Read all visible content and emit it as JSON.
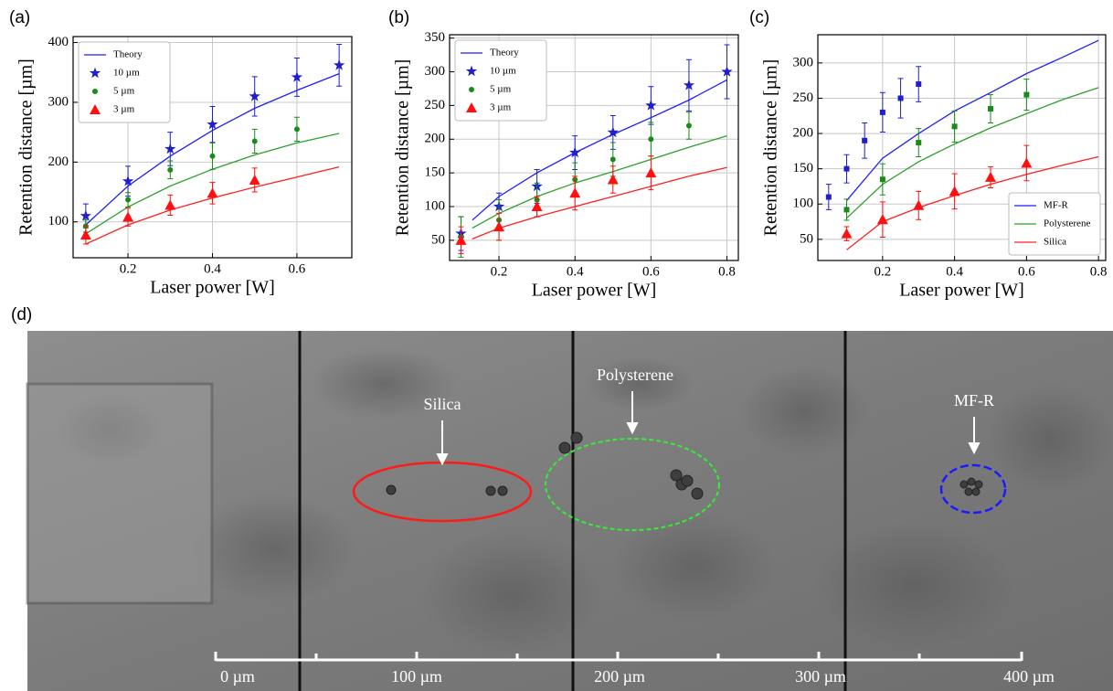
{
  "chart_data": [
    {
      "type": "scatter",
      "label": "(a)",
      "x_label": "Laser power [W]",
      "y_label": "Retention distance [µm]",
      "xlim": [
        0.07,
        0.73
      ],
      "xticks": [
        0.2,
        0.4,
        0.6
      ],
      "ylim": [
        40,
        410
      ],
      "yticks": [
        100,
        200,
        300,
        400
      ],
      "grid": true,
      "legend": "upper left",
      "series": [
        {
          "name": "Theory",
          "color": "#1f1fff",
          "line": true,
          "x": [
            0.1,
            0.2,
            0.3,
            0.4,
            0.5,
            0.6,
            0.7
          ],
          "values": [
            95,
            160,
            210,
            253,
            290,
            320,
            348
          ]
        },
        {
          "color": "#2ca02c",
          "line": true,
          "x": [
            0.1,
            0.2,
            0.3,
            0.4,
            0.5,
            0.6,
            0.7
          ],
          "values": [
            80,
            125,
            160,
            188,
            212,
            232,
            248
          ]
        },
        {
          "color": "#ff2020",
          "line": true,
          "x": [
            0.1,
            0.2,
            0.3,
            0.4,
            0.5,
            0.6,
            0.7
          ],
          "values": [
            63,
            95,
            120,
            140,
            158,
            175,
            192
          ]
        },
        {
          "name": "10 µm",
          "color": "#1f1fcc",
          "marker": "star",
          "x": [
            0.1,
            0.2,
            0.3,
            0.4,
            0.5,
            0.6,
            0.7
          ],
          "values": [
            110,
            168,
            222,
            263,
            310,
            342,
            362
          ],
          "errors": [
            20,
            25,
            28,
            30,
            33,
            32,
            35
          ]
        },
        {
          "name": "5 µm",
          "color": "#1a8a1a",
          "marker": "circle",
          "x": [
            0.1,
            0.2,
            0.3,
            0.4,
            0.5,
            0.6
          ],
          "values": [
            93,
            137,
            187,
            210,
            235,
            255
          ],
          "errors": [
            10,
            12,
            15,
            22,
            20,
            20
          ]
        },
        {
          "name": "3 µm",
          "color": "#ff1010",
          "marker": "triangle",
          "x": [
            0.1,
            0.2,
            0.3,
            0.4,
            0.5
          ],
          "values": [
            78,
            108,
            128,
            148,
            170
          ],
          "errors": [
            15,
            15,
            17,
            18,
            20
          ]
        }
      ]
    },
    {
      "type": "scatter",
      "label": "(b)",
      "x_label": "Laser power [W]",
      "y_label": "Retention distance [µm]",
      "xlim": [
        0.07,
        0.83
      ],
      "xticks": [
        0.2,
        0.4,
        0.6,
        0.8
      ],
      "ylim": [
        20,
        355
      ],
      "yticks": [
        50,
        100,
        150,
        200,
        250,
        300,
        350
      ],
      "grid": true,
      "legend": "upper left",
      "series": [
        {
          "name": "Theory",
          "color": "#1f1fff",
          "line": true,
          "x": [
            0.13,
            0.2,
            0.3,
            0.4,
            0.5,
            0.6,
            0.7,
            0.8
          ],
          "values": [
            80,
            115,
            150,
            180,
            207,
            232,
            258,
            288
          ]
        },
        {
          "color": "#2ca02c",
          "line": true,
          "x": [
            0.13,
            0.2,
            0.3,
            0.4,
            0.5,
            0.6,
            0.7,
            0.8
          ],
          "values": [
            68,
            90,
            115,
            135,
            152,
            170,
            188,
            205
          ]
        },
        {
          "color": "#ff2020",
          "line": true,
          "x": [
            0.13,
            0.2,
            0.3,
            0.4,
            0.5,
            0.6,
            0.7,
            0.8
          ],
          "values": [
            52,
            68,
            85,
            100,
            115,
            130,
            145,
            158
          ]
        },
        {
          "name": "10 µm",
          "color": "#1f1fcc",
          "marker": "star",
          "x": [
            0.1,
            0.2,
            0.3,
            0.4,
            0.5,
            0.6,
            0.7,
            0.8
          ],
          "values": [
            60,
            100,
            130,
            180,
            210,
            250,
            280,
            300
          ],
          "errors": [
            25,
            20,
            25,
            25,
            25,
            28,
            38,
            40
          ]
        },
        {
          "name": "5 µm",
          "color": "#1a8a1a",
          "marker": "circle",
          "x": [
            0.1,
            0.2,
            0.3,
            0.4,
            0.5,
            0.6,
            0.7
          ],
          "values": [
            55,
            80,
            110,
            140,
            170,
            200,
            220
          ],
          "errors": [
            30,
            30,
            25,
            25,
            25,
            25,
            20
          ]
        },
        {
          "name": "3 µm",
          "color": "#ff1010",
          "marker": "triangle",
          "x": [
            0.1,
            0.2,
            0.3,
            0.4,
            0.5,
            0.6
          ],
          "values": [
            50,
            70,
            100,
            120,
            140,
            150
          ],
          "errors": [
            20,
            20,
            15,
            25,
            20,
            25
          ]
        }
      ]
    },
    {
      "type": "scatter",
      "label": "(c)",
      "x_label": "Laser power [W]",
      "y_label": "Retention distance [µm]",
      "xlim": [
        0.02,
        0.82
      ],
      "xticks": [
        0.2,
        0.4,
        0.6,
        0.8
      ],
      "ylim": [
        20,
        340
      ],
      "yticks": [
        50,
        100,
        150,
        200,
        250,
        300
      ],
      "grid": true,
      "legend": "lower right",
      "series": [
        {
          "name": "MF-R",
          "color": "#1f1fff",
          "line": true,
          "x": [
            0.1,
            0.2,
            0.3,
            0.4,
            0.5,
            0.6,
            0.7,
            0.8
          ],
          "values": [
            105,
            165,
            200,
            232,
            258,
            285,
            308,
            332
          ]
        },
        {
          "name": "Polysterene",
          "color": "#2ca02c",
          "line": true,
          "x": [
            0.1,
            0.2,
            0.3,
            0.4,
            0.5,
            0.6,
            0.7,
            0.8
          ],
          "values": [
            80,
            128,
            160,
            185,
            208,
            228,
            248,
            265
          ]
        },
        {
          "name": "Silica",
          "color": "#ff2020",
          "line": true,
          "x": [
            0.1,
            0.2,
            0.3,
            0.4,
            0.5,
            0.6,
            0.7,
            0.8
          ],
          "values": [
            35,
            75,
            95,
            112,
            128,
            142,
            155,
            167
          ]
        },
        {
          "color": "#1f1fcc",
          "marker": "square",
          "x": [
            0.05,
            0.1,
            0.15,
            0.2,
            0.25,
            0.3
          ],
          "values": [
            110,
            150,
            190,
            230,
            250,
            270
          ],
          "errors": [
            18,
            20,
            25,
            28,
            28,
            25
          ]
        },
        {
          "color": "#1a8a1a",
          "marker": "square",
          "x": [
            0.1,
            0.2,
            0.3,
            0.4,
            0.5,
            0.6
          ],
          "values": [
            92,
            135,
            187,
            210,
            235,
            255
          ],
          "errors": [
            15,
            22,
            20,
            22,
            20,
            22
          ]
        },
        {
          "color": "#ff1010",
          "marker": "triangle",
          "x": [
            0.1,
            0.2,
            0.3,
            0.4,
            0.5,
            0.6
          ],
          "values": [
            58,
            78,
            98,
            118,
            138,
            158
          ],
          "errors": [
            10,
            25,
            20,
            25,
            15,
            25
          ]
        }
      ]
    }
  ],
  "micrograph": {
    "label": "(d)",
    "annotations": [
      "Silica",
      "Polysterene",
      "MF-R"
    ],
    "scale_labels": [
      "0 µm",
      "100 µm",
      "200 µm",
      "300 µm",
      "400 µm"
    ]
  }
}
